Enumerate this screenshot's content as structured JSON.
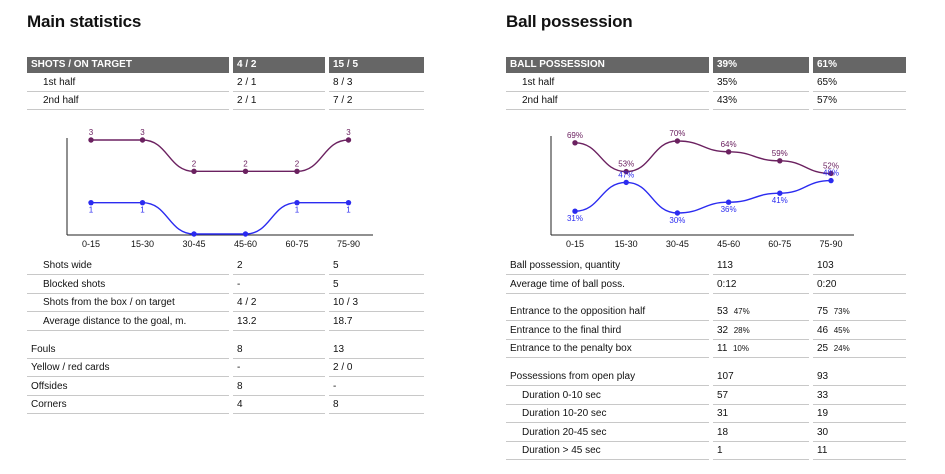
{
  "main": {
    "title": "Main statistics",
    "header": [
      "SHOTS / ON TARGET",
      "4 / 2",
      "15 / 5"
    ],
    "half_rows": [
      {
        "label": "1st half",
        "a": "2 / 1",
        "b": "8 / 3"
      },
      {
        "label": "2nd half",
        "a": "2 / 1",
        "b": "7 / 2"
      }
    ],
    "rows": [
      {
        "label": "Shots wide",
        "a": "2",
        "b": "5"
      },
      {
        "label": "Blocked shots",
        "a": "-",
        "b": "5"
      },
      {
        "label": "Shots from the box / on target",
        "a": "4 / 2",
        "b": "10 / 3"
      },
      {
        "label": "Average distance to the goal, m.",
        "a": "13.2",
        "b": "18.7"
      }
    ],
    "rows2": [
      {
        "label": "Fouls",
        "a": "8",
        "b": "13"
      },
      {
        "label": "Yellow / red cards",
        "a": "-",
        "b": "2 / 0"
      },
      {
        "label": "Offsides",
        "a": "8",
        "b": "-"
      },
      {
        "label": "Corners",
        "a": "4",
        "b": "8"
      }
    ]
  },
  "possession": {
    "title": "Ball possession",
    "header": [
      "BALL POSSESSION",
      "39%",
      "61%"
    ],
    "half_rows": [
      {
        "label": "1st half",
        "a": "35%",
        "b": "65%"
      },
      {
        "label": "2nd half",
        "a": "43%",
        "b": "57%"
      }
    ],
    "rows": [
      {
        "label": "Ball possession, quantity",
        "a": "113",
        "b": "103"
      },
      {
        "label": "Average time of ball poss.",
        "a": "0:12",
        "b": "0:20"
      }
    ],
    "rows2": [
      {
        "label": "Entrance to the opposition half",
        "a": "53",
        "ap": "47%",
        "b": "75",
        "bp": "73%"
      },
      {
        "label": "Entrance to the final third",
        "a": "32",
        "ap": "28%",
        "b": "46",
        "bp": "45%"
      },
      {
        "label": "Entrance to the penalty box",
        "a": "11",
        "ap": "10%",
        "b": "25",
        "bp": "24%"
      }
    ],
    "rows3": [
      {
        "label": "Possessions from open play",
        "a": "107",
        "b": "93"
      },
      {
        "label": "Duration  0-10 sec",
        "a": "57",
        "b": "33"
      },
      {
        "label": "Duration  10-20 sec",
        "a": "31",
        "b": "19"
      },
      {
        "label": "Duration  20-45 sec",
        "a": "18",
        "b": "30"
      },
      {
        "label": "Duration  > 45 sec",
        "a": "1",
        "b": "11"
      }
    ]
  },
  "chart_data": [
    {
      "type": "line",
      "categories": [
        "0-15",
        "15-30",
        "30-45",
        "45-60",
        "60-75",
        "75-90"
      ],
      "ylim": [
        0,
        3
      ],
      "series": [
        {
          "values": [
            3,
            3,
            2,
            2,
            2,
            3
          ],
          "labels": [
            "3",
            "3",
            "2",
            "2",
            "2",
            "3"
          ],
          "color": "#6b2160"
        },
        {
          "values": [
            1,
            1,
            0,
            0,
            1,
            1
          ],
          "labels": [
            "1",
            "1",
            "",
            "",
            "1",
            "1"
          ],
          "color": "#2b2bf0"
        }
      ]
    },
    {
      "type": "line",
      "categories": [
        "0-15",
        "15-30",
        "30-45",
        "45-60",
        "60-75",
        "75-90"
      ],
      "ylim": [
        25,
        75
      ],
      "series": [
        {
          "values": [
            69,
            53,
            70,
            64,
            59,
            52
          ],
          "labels": [
            "69%",
            "53%",
            "70%",
            "64%",
            "59%",
            "52%"
          ],
          "color": "#6b2160"
        },
        {
          "values": [
            31,
            47,
            30,
            36,
            41,
            48
          ],
          "labels": [
            "31%",
            "47%",
            "30%",
            "36%",
            "41%",
            "48%"
          ],
          "color": "#2b2bf0"
        }
      ]
    }
  ],
  "colors": {
    "header_bg": "#666666",
    "purple": "#6b2160",
    "blue": "#2b2bf0"
  }
}
